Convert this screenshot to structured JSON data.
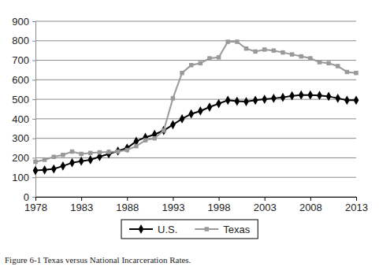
{
  "chart_data": {
    "type": "line",
    "caption": "Figure 6-1 Texas versus National Incarceration Rates.",
    "x": [
      1978,
      1979,
      1980,
      1981,
      1982,
      1983,
      1984,
      1985,
      1986,
      1987,
      1988,
      1989,
      1990,
      1991,
      1992,
      1993,
      1994,
      1995,
      1996,
      1997,
      1998,
      1999,
      2000,
      2001,
      2002,
      2003,
      2004,
      2005,
      2006,
      2007,
      2008,
      2009,
      2010,
      2011,
      2012,
      2013
    ],
    "series": [
      {
        "name": "U.S.",
        "color": "#000000",
        "marker": "diamond",
        "line_style": "solid",
        "values": [
          135,
          138,
          143,
          158,
          175,
          183,
          190,
          206,
          220,
          235,
          250,
          285,
          305,
          320,
          340,
          370,
          400,
          425,
          440,
          460,
          478,
          495,
          490,
          488,
          495,
          500,
          505,
          510,
          518,
          522,
          522,
          520,
          515,
          505,
          495,
          495
        ]
      },
      {
        "name": "Texas",
        "color": "#999999",
        "marker": "square",
        "line_style": "solid",
        "values": [
          180,
          190,
          205,
          215,
          232,
          220,
          225,
          228,
          230,
          232,
          240,
          260,
          290,
          300,
          340,
          505,
          635,
          675,
          685,
          710,
          715,
          795,
          795,
          760,
          745,
          755,
          750,
          740,
          730,
          720,
          710,
          690,
          685,
          670,
          640,
          635
        ]
      }
    ],
    "xlim": [
      1978,
      2013
    ],
    "xticks": [
      1978,
      1983,
      1988,
      1993,
      1998,
      2003,
      2008,
      2013
    ],
    "ylim": [
      0,
      900
    ],
    "yticks": [
      0,
      100,
      200,
      300,
      400,
      500,
      600,
      700,
      800,
      900
    ],
    "grid": true,
    "legend": "bottom"
  }
}
